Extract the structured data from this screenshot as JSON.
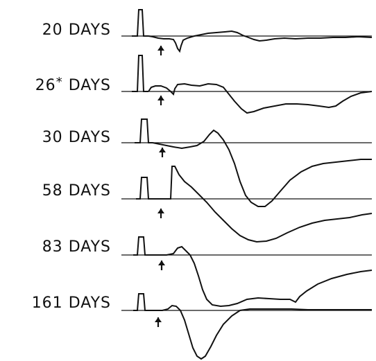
{
  "title": "",
  "traces": [
    {
      "label": "20",
      "marker": "",
      "unit": "DAYS"
    },
    {
      "label": "26",
      "marker": "*",
      "unit": "DAYS"
    },
    {
      "label": "30",
      "marker": "",
      "unit": "DAYS"
    },
    {
      "label": "58",
      "marker": "",
      "unit": "DAYS"
    },
    {
      "label": "83",
      "marker": "",
      "unit": "DAYS"
    },
    {
      "label": "161",
      "marker": "",
      "unit": "DAYS"
    }
  ],
  "colors": {
    "ink": "#111111",
    "background": "#ffffff"
  },
  "icons": {
    "stimulus": "upward-arrow-icon",
    "calibration": "calibration-pulse"
  }
}
